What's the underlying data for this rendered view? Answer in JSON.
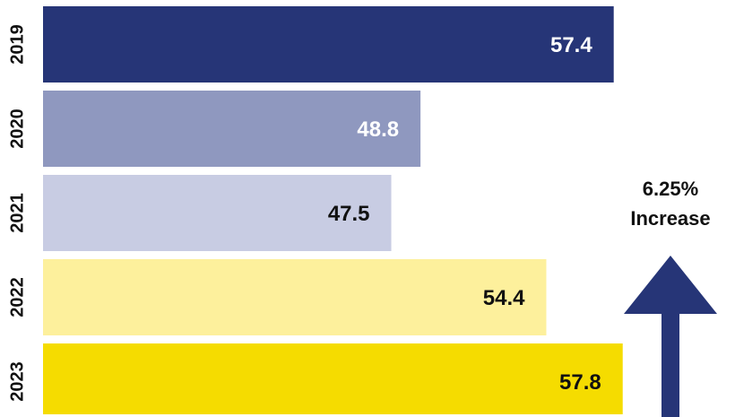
{
  "chart_data": {
    "type": "hbar",
    "categories": [
      "2019",
      "2020",
      "2021",
      "2022",
      "2023"
    ],
    "values": [
      57.4,
      48.8,
      47.5,
      54.4,
      57.8
    ],
    "colors": [
      "#263577",
      "#8f98bf",
      "#c8cce3",
      "#fdf09c",
      "#f5dc00"
    ],
    "value_label_colors": [
      "#ffffff",
      "#ffffff",
      "#111111",
      "#111111",
      "#111111"
    ],
    "xlim": [
      32,
      62
    ],
    "annotations": [
      "6.25%",
      "Increase"
    ],
    "annotation_color": "#263577"
  }
}
